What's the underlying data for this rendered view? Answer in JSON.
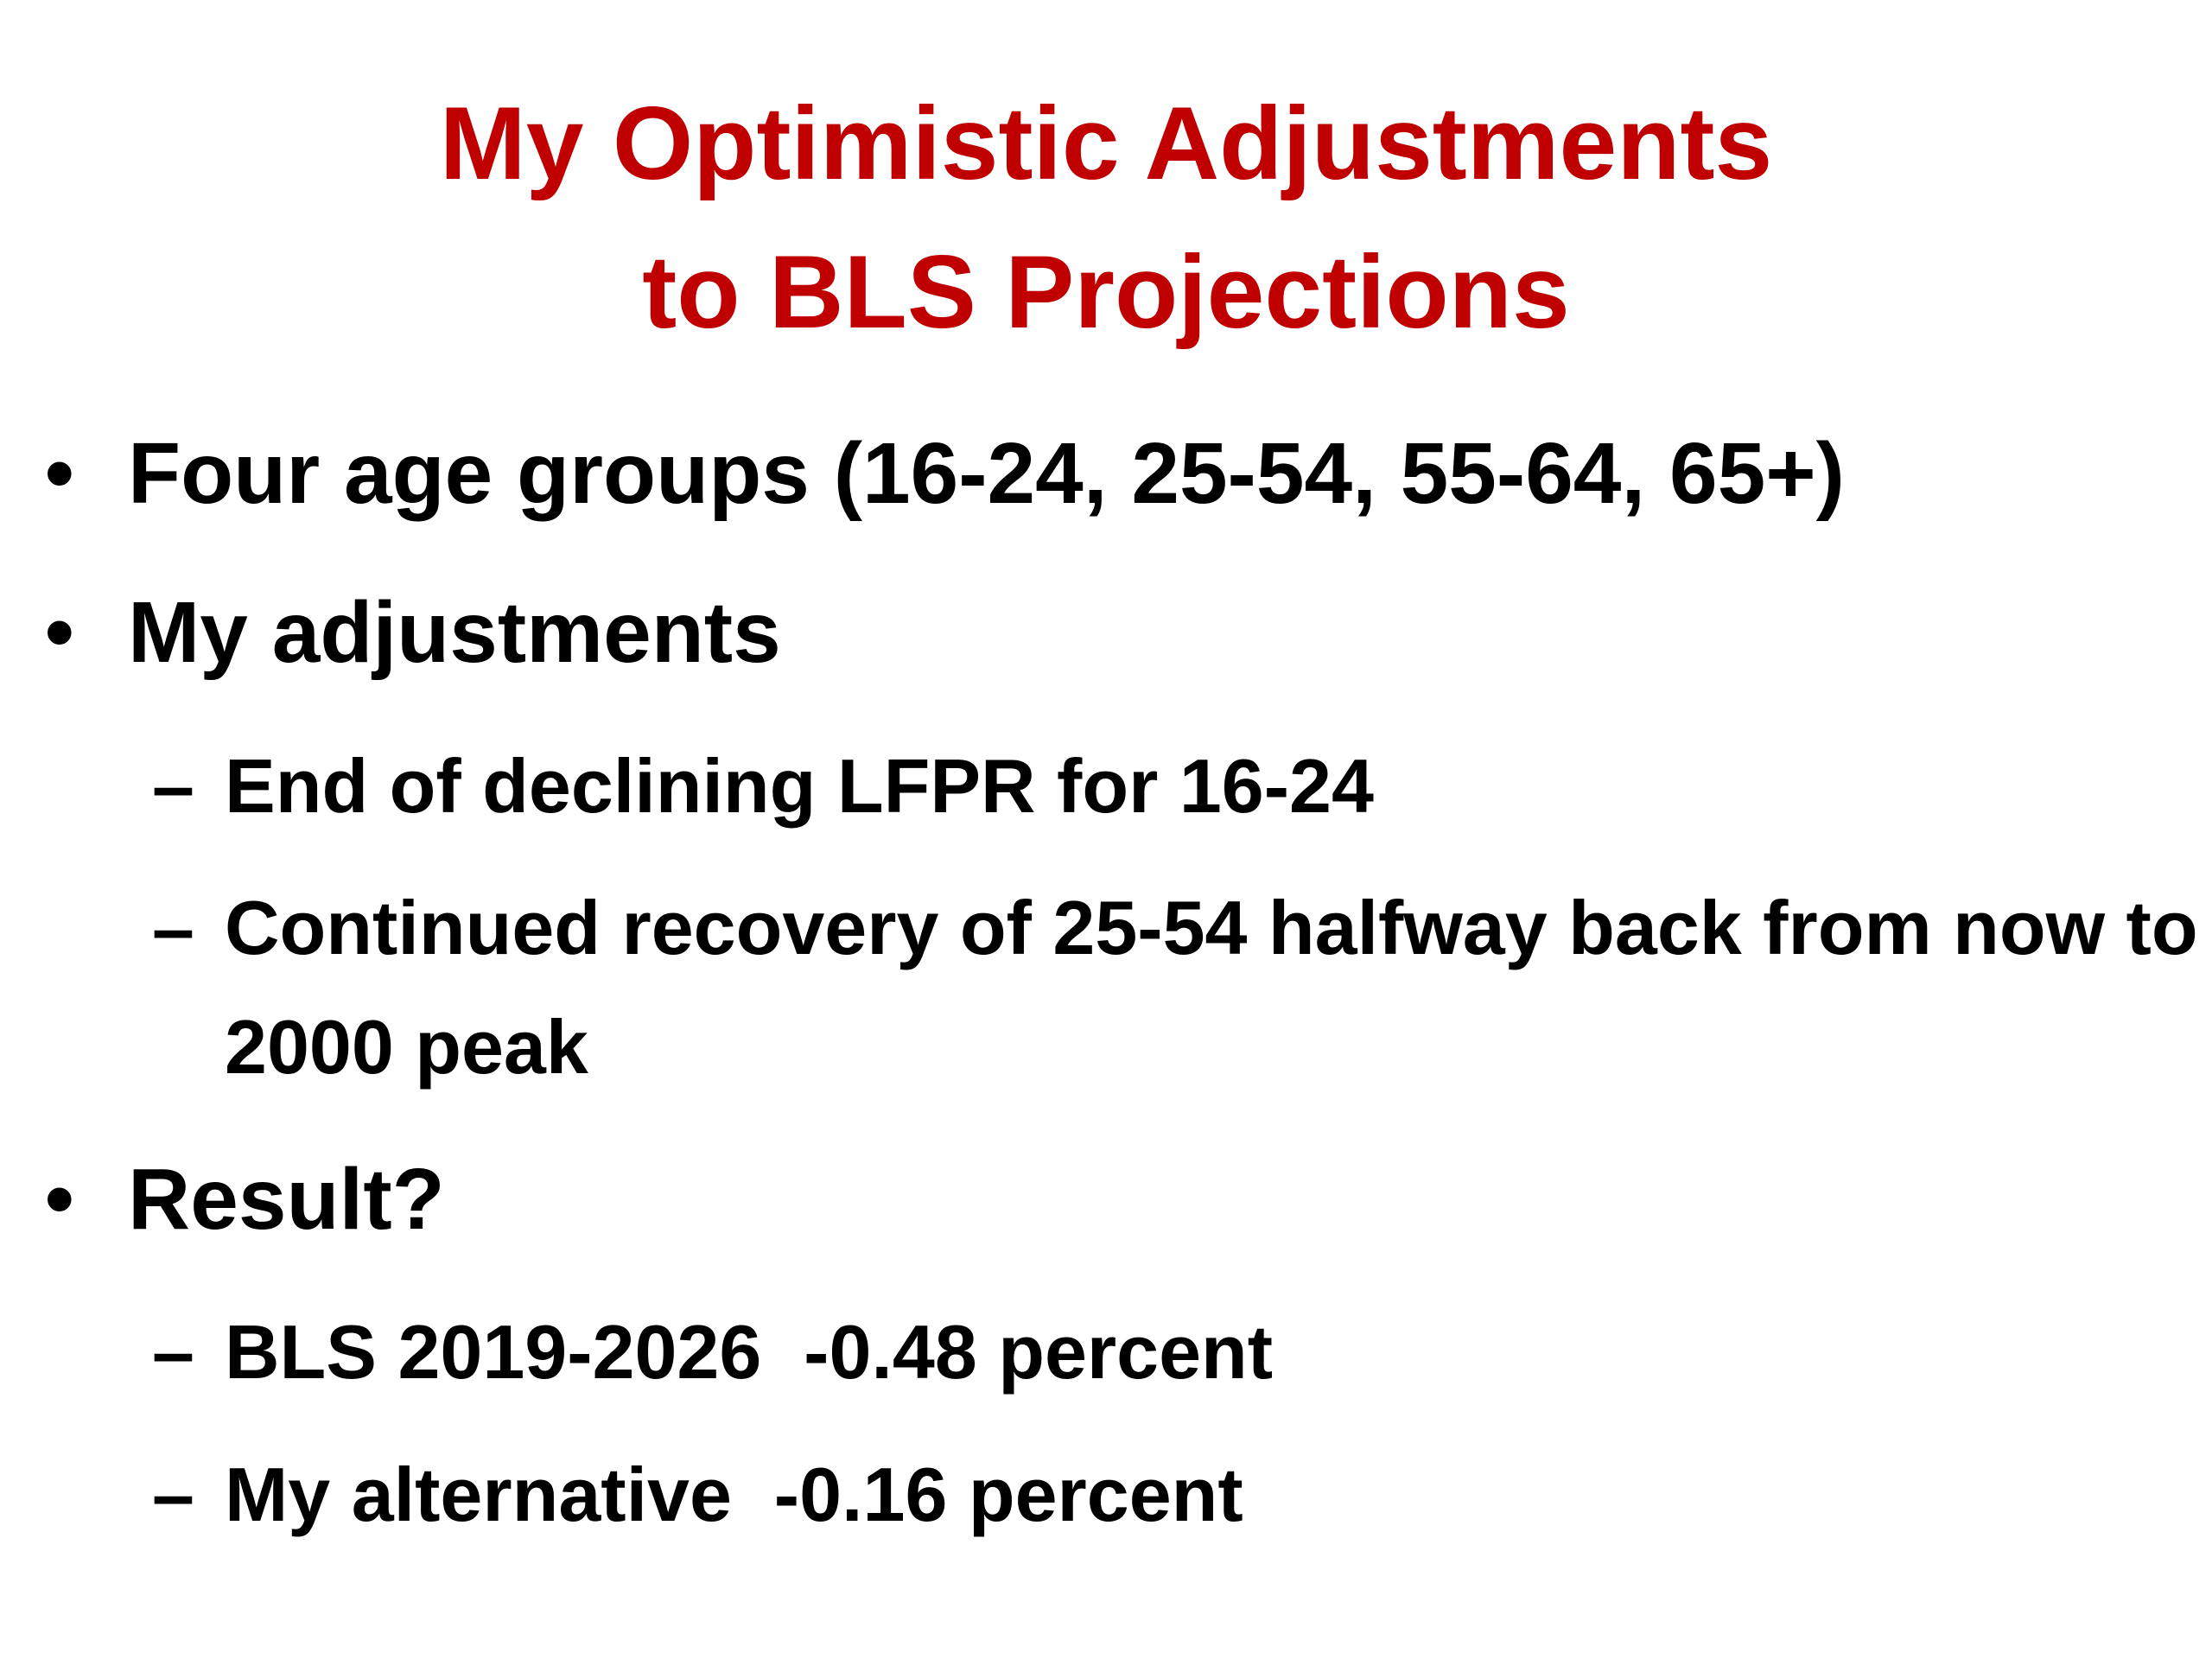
{
  "slide": {
    "title_line1": "My Optimistic Adjustments",
    "title_line2": "to BLS Projections",
    "bullet_marker": "•",
    "dash_marker": "–",
    "bullets": [
      {
        "text": "Four age groups (16-24, 25-54, 55-64, 65+)"
      },
      {
        "text": "My adjustments"
      },
      {
        "text": "Result?"
      }
    ],
    "adjustments": [
      {
        "text": "End of declining LFPR for 16-24"
      },
      {
        "text": "Continued recovery of 25-54 halfway back from now to 2000 peak"
      }
    ],
    "results": [
      {
        "text": "BLS 2019-2026  -0.48 percent"
      },
      {
        "text": "My alternative  -0.16 percent"
      }
    ]
  }
}
